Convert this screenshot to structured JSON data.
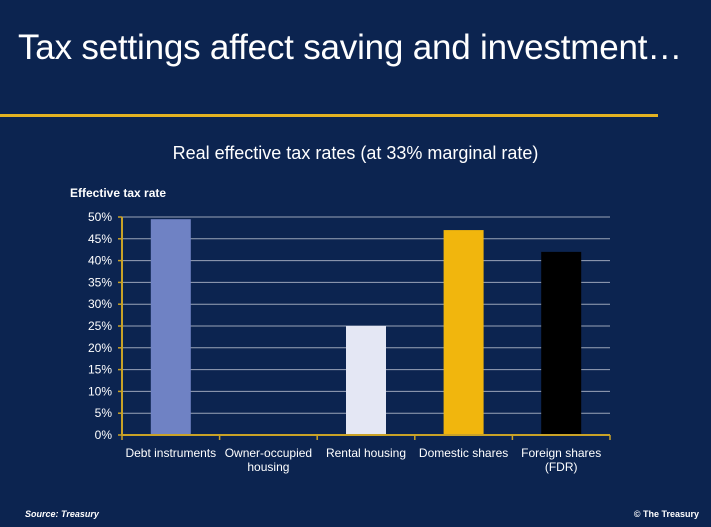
{
  "slide": {
    "title": "Tax settings affect saving and investment…",
    "source": "Source: Treasury",
    "copyright": "© The Treasury",
    "colors": {
      "background": "#0c2450",
      "rule": "#e3b222",
      "grid": "#9aa3b8",
      "axis": "#c9a227"
    }
  },
  "chart_data": {
    "type": "bar",
    "title": "Real effective tax rates (at 33% marginal rate)",
    "ylabel": "Effective tax rate",
    "xlabel": "",
    "categories": [
      "Debt instruments",
      "Owner-occupied housing",
      "Rental housing",
      "Domestic shares",
      "Foreign shares (FDR)"
    ],
    "category_lines": [
      [
        "Debt instruments"
      ],
      [
        "Owner-occupied",
        "housing"
      ],
      [
        "Rental housing"
      ],
      [
        "Domestic shares"
      ],
      [
        "Foreign shares",
        "(FDR)"
      ]
    ],
    "values": [
      49.5,
      0,
      25,
      47,
      42
    ],
    "bar_colors": [
      "#6f82c4",
      "#a3b0dc",
      "#e4e7f4",
      "#f1b60d",
      "#000000"
    ],
    "ylim": [
      0,
      50
    ],
    "yticks": [
      0,
      5,
      10,
      15,
      20,
      25,
      30,
      35,
      40,
      45,
      50
    ],
    "ytick_format": "%",
    "grid": true,
    "legend": "none"
  }
}
